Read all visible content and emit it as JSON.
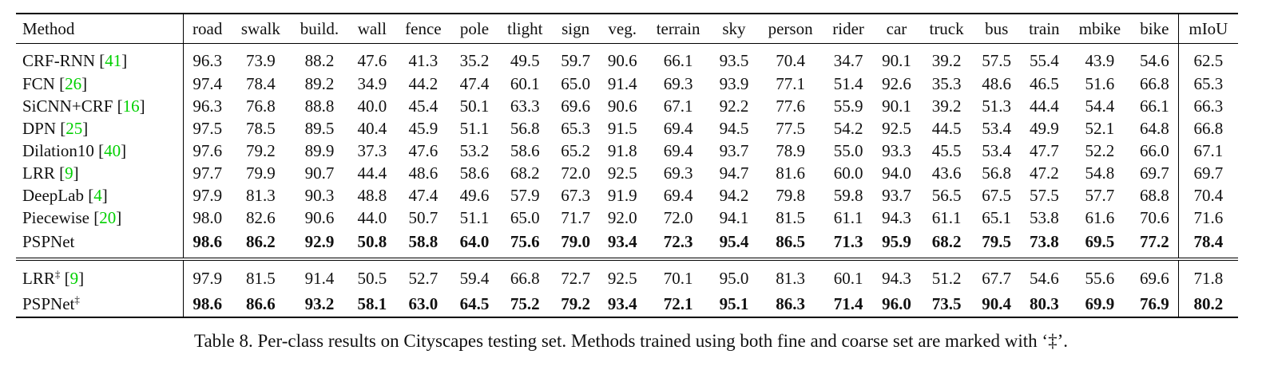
{
  "table": {
    "columns": [
      "Method",
      "road",
      "swalk",
      "build.",
      "wall",
      "fence",
      "pole",
      "tlight",
      "sign",
      "veg.",
      "terrain",
      "sky",
      "person",
      "rider",
      "car",
      "truck",
      "bus",
      "train",
      "mbike",
      "bike",
      "mIoU"
    ],
    "groups": [
      {
        "rows": [
          {
            "method": "CRF-RNN",
            "sup": "",
            "ref": "41",
            "bold": false,
            "values": [
              "96.3",
              "73.9",
              "88.2",
              "47.6",
              "41.3",
              "35.2",
              "49.5",
              "59.7",
              "90.6",
              "66.1",
              "93.5",
              "70.4",
              "34.7",
              "90.1",
              "39.2",
              "57.5",
              "55.4",
              "43.9",
              "54.6",
              "62.5"
            ]
          },
          {
            "method": "FCN",
            "sup": "",
            "ref": "26",
            "bold": false,
            "values": [
              "97.4",
              "78.4",
              "89.2",
              "34.9",
              "44.2",
              "47.4",
              "60.1",
              "65.0",
              "91.4",
              "69.3",
              "93.9",
              "77.1",
              "51.4",
              "92.6",
              "35.3",
              "48.6",
              "46.5",
              "51.6",
              "66.8",
              "65.3"
            ]
          },
          {
            "method": "SiCNN+CRF",
            "sup": "",
            "ref": "16",
            "bold": false,
            "values": [
              "96.3",
              "76.8",
              "88.8",
              "40.0",
              "45.4",
              "50.1",
              "63.3",
              "69.6",
              "90.6",
              "67.1",
              "92.2",
              "77.6",
              "55.9",
              "90.1",
              "39.2",
              "51.3",
              "44.4",
              "54.4",
              "66.1",
              "66.3"
            ]
          },
          {
            "method": "DPN",
            "sup": "",
            "ref": "25",
            "bold": false,
            "values": [
              "97.5",
              "78.5",
              "89.5",
              "40.4",
              "45.9",
              "51.1",
              "56.8",
              "65.3",
              "91.5",
              "69.4",
              "94.5",
              "77.5",
              "54.2",
              "92.5",
              "44.5",
              "53.4",
              "49.9",
              "52.1",
              "64.8",
              "66.8"
            ]
          },
          {
            "method": "Dilation10",
            "sup": "",
            "ref": "40",
            "bold": false,
            "values": [
              "97.6",
              "79.2",
              "89.9",
              "37.3",
              "47.6",
              "53.2",
              "58.6",
              "65.2",
              "91.8",
              "69.4",
              "93.7",
              "78.9",
              "55.0",
              "93.3",
              "45.5",
              "53.4",
              "47.7",
              "52.2",
              "66.0",
              "67.1"
            ]
          },
          {
            "method": "LRR",
            "sup": "",
            "ref": "9",
            "bold": false,
            "values": [
              "97.7",
              "79.9",
              "90.7",
              "44.4",
              "48.6",
              "58.6",
              "68.2",
              "72.0",
              "92.5",
              "69.3",
              "94.7",
              "81.6",
              "60.0",
              "94.0",
              "43.6",
              "56.8",
              "47.2",
              "54.8",
              "69.7",
              "69.7"
            ]
          },
          {
            "method": "DeepLab",
            "sup": "",
            "ref": "4",
            "bold": false,
            "values": [
              "97.9",
              "81.3",
              "90.3",
              "48.8",
              "47.4",
              "49.6",
              "57.9",
              "67.3",
              "91.9",
              "69.4",
              "94.2",
              "79.8",
              "59.8",
              "93.7",
              "56.5",
              "67.5",
              "57.5",
              "57.7",
              "68.8",
              "70.4"
            ]
          },
          {
            "method": "Piecewise",
            "sup": "",
            "ref": "20",
            "bold": false,
            "values": [
              "98.0",
              "82.6",
              "90.6",
              "44.0",
              "50.7",
              "51.1",
              "65.0",
              "71.7",
              "92.0",
              "72.0",
              "94.1",
              "81.5",
              "61.1",
              "94.3",
              "61.1",
              "65.1",
              "53.8",
              "61.6",
              "70.6",
              "71.6"
            ]
          },
          {
            "method": "PSPNet",
            "sup": "",
            "ref": "",
            "bold": true,
            "values": [
              "98.6",
              "86.2",
              "92.9",
              "50.8",
              "58.8",
              "64.0",
              "75.6",
              "79.0",
              "93.4",
              "72.3",
              "95.4",
              "86.5",
              "71.3",
              "95.9",
              "68.2",
              "79.5",
              "73.8",
              "69.5",
              "77.2",
              "78.4"
            ]
          }
        ]
      },
      {
        "rows": [
          {
            "method": "LRR",
            "sup": "‡",
            "ref": "9",
            "bold": false,
            "values": [
              "97.9",
              "81.5",
              "91.4",
              "50.5",
              "52.7",
              "59.4",
              "66.8",
              "72.7",
              "92.5",
              "70.1",
              "95.0",
              "81.3",
              "60.1",
              "94.3",
              "51.2",
              "67.7",
              "54.6",
              "55.6",
              "69.6",
              "71.8"
            ]
          },
          {
            "method": "PSPNet",
            "sup": "‡",
            "ref": "",
            "bold": true,
            "values": [
              "98.6",
              "86.6",
              "93.2",
              "58.1",
              "63.0",
              "64.5",
              "75.2",
              "79.2",
              "93.4",
              "72.1",
              "95.1",
              "86.3",
              "71.4",
              "96.0",
              "73.5",
              "90.4",
              "80.3",
              "69.9",
              "76.9",
              "80.2"
            ]
          }
        ]
      }
    ]
  },
  "caption": "Table 8. Per-class results on Cityscapes testing set. Methods trained using both fine and coarse set are marked with ‘‡’."
}
